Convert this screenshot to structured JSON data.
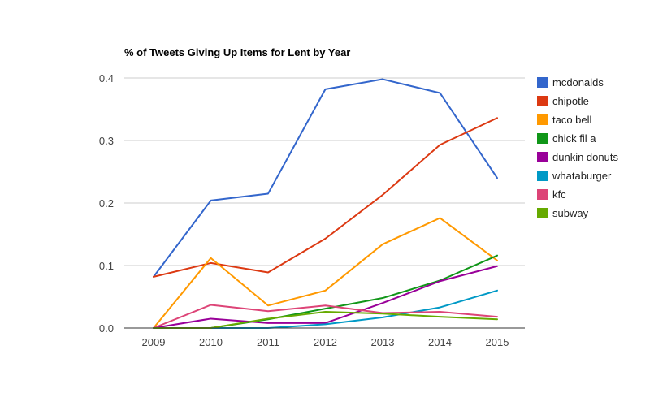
{
  "chart_data": {
    "type": "line",
    "title": "% of Tweets Giving Up Items for Lent by Year",
    "xlabel": "",
    "ylabel": "",
    "x": [
      "2009",
      "2010",
      "2011",
      "2012",
      "2013",
      "2014",
      "2015"
    ],
    "ylim": [
      0,
      0.4
    ],
    "yticks": [
      "0.0",
      "0.1",
      "0.2",
      "0.3",
      "0.4"
    ],
    "grid": true,
    "legend_position": "right",
    "series": [
      {
        "name": "mcdonalds",
        "color": "#3366cc",
        "values": [
          0.082,
          0.204,
          0.215,
          0.382,
          0.398,
          0.376,
          0.24
        ]
      },
      {
        "name": "chipotle",
        "color": "#dc3912",
        "values": [
          0.082,
          0.104,
          0.089,
          0.143,
          0.213,
          0.293,
          0.336
        ]
      },
      {
        "name": "taco bell",
        "color": "#ff9900",
        "values": [
          0.0,
          0.112,
          0.036,
          0.06,
          0.134,
          0.176,
          0.108
        ]
      },
      {
        "name": "chick fil a",
        "color": "#109618",
        "values": [
          0.0,
          0.0,
          0.014,
          0.031,
          0.048,
          0.076,
          0.116
        ]
      },
      {
        "name": "dunkin donuts",
        "color": "#990099",
        "values": [
          0.0,
          0.015,
          0.008,
          0.008,
          0.04,
          0.075,
          0.099
        ]
      },
      {
        "name": "whataburger",
        "color": "#0099c6",
        "values": [
          0.0,
          0.0,
          0.0,
          0.006,
          0.017,
          0.033,
          0.06
        ]
      },
      {
        "name": "kfc",
        "color": "#dd4477",
        "values": [
          0.0,
          0.037,
          0.027,
          0.036,
          0.024,
          0.026,
          0.018
        ]
      },
      {
        "name": "subway",
        "color": "#66aa00",
        "values": [
          0.0,
          0.0,
          0.015,
          0.026,
          0.023,
          0.018,
          0.014
        ]
      }
    ]
  }
}
